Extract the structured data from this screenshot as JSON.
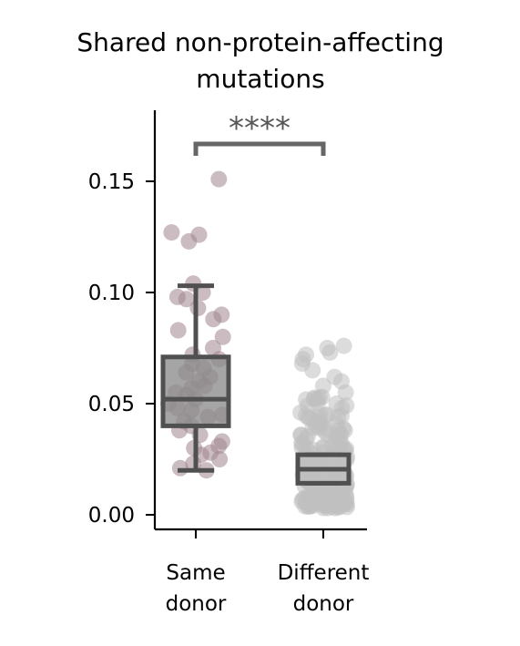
{
  "chart_data": {
    "type": "box",
    "title": "Shared non-protein-affecting mutations",
    "title_lines": [
      "Shared non-protein-affecting",
      "mutations"
    ],
    "xlabel": "",
    "ylabel": "",
    "categories": [
      "Same donor",
      "Different donor"
    ],
    "category_lines": [
      [
        "Same",
        "donor"
      ],
      [
        "Different",
        "donor"
      ]
    ],
    "ylim": [
      -0.007,
      0.182
    ],
    "y_ticks": [
      0.0,
      0.05,
      0.1,
      0.15
    ],
    "y_tick_labels": [
      "0.00",
      "0.05",
      "0.10",
      "0.15"
    ],
    "grid": false,
    "boxes": [
      {
        "name": "Same donor",
        "whisker_low": 0.02,
        "q1": 0.04,
        "median": 0.052,
        "q3": 0.071,
        "whisker_high": 0.103,
        "box_color": "#8c8c8c"
      },
      {
        "name": "Different donor",
        "whisker_low": 0.0142,
        "q1": 0.0142,
        "median": 0.0205,
        "q3": 0.027,
        "whisker_high": 0.027,
        "box_color": "#c0c0c0"
      }
    ],
    "points": [
      {
        "category": "Same donor",
        "values": [
          0.151,
          0.127,
          0.126,
          0.123,
          0.104,
          0.1,
          0.098,
          0.097,
          0.093,
          0.09,
          0.088,
          0.083,
          0.08,
          0.075,
          0.072,
          0.07,
          0.068,
          0.066,
          0.064,
          0.062,
          0.06,
          0.058,
          0.057,
          0.055,
          0.054,
          0.052,
          0.05,
          0.048,
          0.047,
          0.045,
          0.044,
          0.042,
          0.04,
          0.038,
          0.036,
          0.033,
          0.031,
          0.03,
          0.028,
          0.027,
          0.025,
          0.023,
          0.021,
          0.02
        ],
        "color": "#a08590"
      },
      {
        "category": "Different donor",
        "values": [
          0.076,
          0.075,
          0.073,
          0.072,
          0.07,
          0.068,
          0.065,
          0.062,
          0.06,
          0.058,
          0.055,
          0.053,
          0.05,
          0.048,
          0.046,
          0.044,
          0.042,
          0.04,
          0.038,
          0.036,
          0.034,
          0.032,
          0.03,
          0.029,
          0.028,
          0.027,
          0.026,
          0.025,
          0.024,
          0.023,
          0.022,
          0.021,
          0.02,
          0.019,
          0.018,
          0.017,
          0.016,
          0.015,
          0.014,
          0.013,
          0.012,
          0.011,
          0.01,
          0.009,
          0.008,
          0.007,
          0.006,
          0.005,
          0.004,
          0.003
        ],
        "color": "#c0c0c0"
      }
    ],
    "significance": {
      "label": "****",
      "between": [
        "Same donor",
        "Different donor"
      ],
      "color": "#666666"
    }
  }
}
